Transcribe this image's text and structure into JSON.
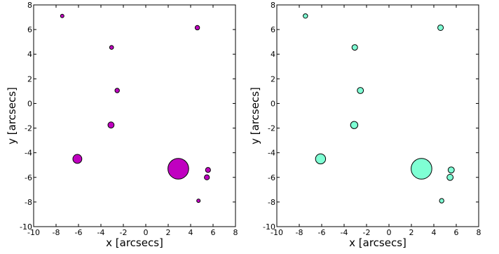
{
  "chart_data": [
    {
      "type": "scatter",
      "xlabel": "x [arcsecs]",
      "ylabel": "y [arcsecs]",
      "xlim": [
        -10,
        8
      ],
      "ylim": [
        -10,
        8
      ],
      "xticks": [
        -10,
        -8,
        -6,
        -4,
        -2,
        0,
        2,
        4,
        6,
        8
      ],
      "yticks": [
        -10,
        -8,
        -6,
        -4,
        -2,
        0,
        2,
        4,
        6,
        8
      ],
      "marker_color": "#c000c0",
      "points": [
        {
          "x": -7.45,
          "y": 7.1,
          "size": 0.25
        },
        {
          "x": -3.05,
          "y": 4.55,
          "size": 0.35
        },
        {
          "x": -2.55,
          "y": 1.05,
          "size": 0.4
        },
        {
          "x": -3.1,
          "y": -1.75,
          "size": 0.55
        },
        {
          "x": -6.1,
          "y": -4.5,
          "size": 0.8
        },
        {
          "x": 2.9,
          "y": -5.3,
          "size": 1.85
        },
        {
          "x": 4.6,
          "y": 6.15,
          "size": 0.4
        },
        {
          "x": 5.55,
          "y": -5.4,
          "size": 0.45
        },
        {
          "x": 5.45,
          "y": -6.0,
          "size": 0.45
        },
        {
          "x": 4.7,
          "y": -7.9,
          "size": 0.22
        }
      ]
    },
    {
      "type": "scatter",
      "xlabel": "x [arcsecs]",
      "ylabel": "y [arcsecs]",
      "xlim": [
        -10,
        8
      ],
      "ylim": [
        -10,
        8
      ],
      "xticks": [
        -10,
        -8,
        -6,
        -4,
        -2,
        0,
        2,
        4,
        6,
        8
      ],
      "yticks": [
        -10,
        -8,
        -6,
        -4,
        -2,
        0,
        2,
        4,
        6,
        8
      ],
      "marker_color": "#7fffd4",
      "points": [
        {
          "x": -7.45,
          "y": 7.1,
          "size": 0.4
        },
        {
          "x": -3.05,
          "y": 4.55,
          "size": 0.5
        },
        {
          "x": -2.55,
          "y": 1.05,
          "size": 0.55
        },
        {
          "x": -3.1,
          "y": -1.75,
          "size": 0.65
        },
        {
          "x": -6.1,
          "y": -4.5,
          "size": 0.9
        },
        {
          "x": 2.9,
          "y": -5.3,
          "size": 1.85
        },
        {
          "x": 4.6,
          "y": 6.15,
          "size": 0.5
        },
        {
          "x": 5.55,
          "y": -5.4,
          "size": 0.55
        },
        {
          "x": 5.45,
          "y": -6.0,
          "size": 0.55
        },
        {
          "x": 4.7,
          "y": -7.9,
          "size": 0.4
        }
      ]
    }
  ]
}
